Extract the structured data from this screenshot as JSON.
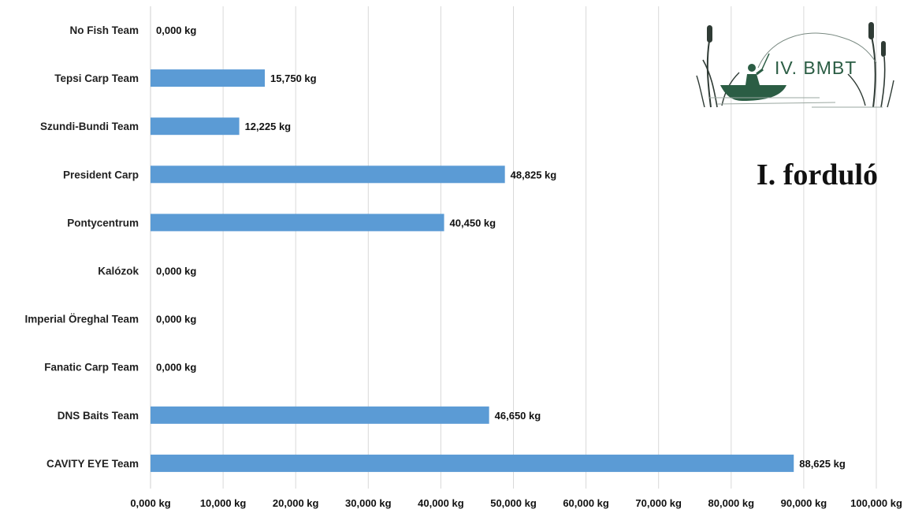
{
  "chart_data": {
    "type": "bar",
    "orientation": "horizontal",
    "categories": [
      "No Fish Team",
      "Tepsi Carp Team",
      "Szundi-Bundi Team",
      "President Carp",
      "Pontycentrum",
      "Kalózok",
      "Imperial Öreghal Team",
      "Fanatic Carp Team",
      "DNS Baits Team",
      "CAVITY EYE Team"
    ],
    "values": [
      0,
      15.75,
      12.225,
      48.825,
      40.45,
      0,
      0,
      0,
      46.65,
      88.625
    ],
    "value_labels": [
      "0,000 kg",
      "15,750 kg",
      "12,225 kg",
      "48,825 kg",
      "40,450 kg",
      "0,000 kg",
      "0,000 kg",
      "0,000 kg",
      "46,650 kg",
      "88,625 kg"
    ],
    "x_ticks": [
      0,
      10,
      20,
      30,
      40,
      50,
      60,
      70,
      80,
      90,
      100
    ],
    "x_tick_labels": [
      "0,000 kg",
      "10,000 kg",
      "20,000 kg",
      "30,000 kg",
      "40,000 kg",
      "50,000 kg",
      "60,000 kg",
      "70,000 kg",
      "80,000 kg",
      "90,000 kg",
      "100,000 kg"
    ],
    "xlim": [
      0,
      100
    ],
    "grid": true,
    "bar_color": "#5b9bd5",
    "title": "",
    "xlabel": "",
    "ylabel": ""
  },
  "annotation": {
    "round_title": "I. forduló"
  },
  "logo": {
    "text": "IV. BMBT",
    "icon": "fisherman-boat-logo-icon",
    "color": "#2b5d44"
  }
}
